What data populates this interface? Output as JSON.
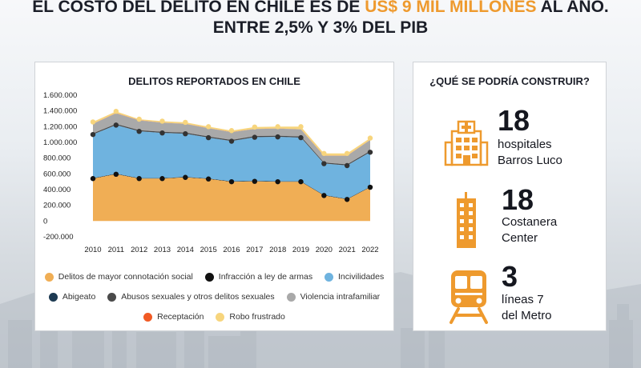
{
  "headline": {
    "line1_pre": "EL COSTO DEL DELITO EN CHILE ES DE ",
    "line1_accent": "US$ 9 MIL MILLONES",
    "line1_post": " AL AÑO.",
    "line2": "ENTRE 2,5% Y 3% DEL PIB"
  },
  "colors": {
    "accent": "#ee9a2e",
    "mayor": "#f0ae55",
    "armas": "#111111",
    "incivilidades": "#6fb3df",
    "abigeato": "#1d3a52",
    "abusos": "#4a4a4a",
    "violencia": "#a9a9a9",
    "receptacion": "#f15a24",
    "frustrado": "#f7d57d"
  },
  "chart_data": {
    "type": "area",
    "title": "DELITOS REPORTADOS EN CHILE",
    "x": [
      "2010",
      "2011",
      "2012",
      "2013",
      "2014",
      "2015",
      "2016",
      "2017",
      "2018",
      "2019",
      "2020",
      "2021",
      "2022"
    ],
    "ylim": [
      -200000,
      1600000
    ],
    "y_ticks": [
      "1.600.000",
      "1.400.000",
      "1.200.000",
      "1.000.000",
      "800.000",
      "600.000",
      "400.000",
      "200.000",
      "0",
      "-200.000"
    ],
    "y_tick_values": [
      1600000,
      1400000,
      1200000,
      1000000,
      800000,
      600000,
      400000,
      200000,
      0,
      -200000
    ],
    "series": [
      {
        "name": "Delitos de mayor connotación social",
        "key": "mayor",
        "cumulative": [
          540000,
          595000,
          540000,
          540000,
          555000,
          535000,
          500000,
          505000,
          500000,
          500000,
          325000,
          275000,
          430000
        ]
      },
      {
        "name": "Infracción a ley de armas",
        "key": "armas",
        "cumulative": [
          545000,
          600000,
          545000,
          545000,
          560000,
          540000,
          505000,
          510000,
          505000,
          505000,
          330000,
          280000,
          435000
        ]
      },
      {
        "name": "Incivilidades",
        "key": "incivilidades",
        "cumulative": [
          1100000,
          1220000,
          1140000,
          1120000,
          1110000,
          1060000,
          1015000,
          1065000,
          1070000,
          1060000,
          730000,
          705000,
          875000
        ]
      },
      {
        "name": "Abigeato",
        "key": "abigeato",
        "cumulative": [
          1102000,
          1222000,
          1142000,
          1122000,
          1112000,
          1062000,
          1017000,
          1067000,
          1072000,
          1062000,
          732000,
          707000,
          877000
        ]
      },
      {
        "name": "Abusos sexuales y otros delitos sexuales",
        "key": "abusos",
        "cumulative": [
          1115000,
          1235000,
          1155000,
          1135000,
          1125000,
          1075000,
          1030000,
          1080000,
          1085000,
          1075000,
          745000,
          720000,
          890000
        ]
      },
      {
        "name": "Violencia intrafamiliar",
        "key": "violencia",
        "cumulative": [
          1235000,
          1370000,
          1280000,
          1250000,
          1235000,
          1180000,
          1130000,
          1170000,
          1175000,
          1165000,
          830000,
          830000,
          1030000
        ]
      },
      {
        "name": "Receptación",
        "key": "receptacion",
        "cumulative": [
          1237000,
          1372000,
          1282000,
          1252000,
          1237000,
          1182000,
          1132000,
          1172000,
          1177000,
          1167000,
          832000,
          832000,
          1032000
        ]
      },
      {
        "name": "Robo frustrado",
        "key": "frustrado",
        "cumulative": [
          1260000,
          1395000,
          1295000,
          1270000,
          1255000,
          1200000,
          1150000,
          1195000,
          1200000,
          1200000,
          860000,
          860000,
          1055000
        ]
      }
    ]
  },
  "legend": {
    "row1": [
      "Delitos de mayor connotación social",
      "Infracción a ley de armas",
      "Incivilidades"
    ],
    "row2": [
      "Abigeato",
      "Abusos sexuales y otros delitos sexuales",
      "Violencia intrafamiliar"
    ],
    "row3": [
      "Receptación",
      "Robo frustrado"
    ]
  },
  "build": {
    "title": "¿QUÉ SE PODRÍA CONSTRUIR?",
    "items": [
      {
        "number": "18",
        "line1": "hospitales",
        "line2": "Barros Luco",
        "icon": "hospital-icon"
      },
      {
        "number": "18",
        "line1": "Costanera",
        "line2": "Center",
        "icon": "skyscraper-icon"
      },
      {
        "number": "3",
        "line1": "líneas 7",
        "line2": "del Metro",
        "icon": "metro-train-icon"
      }
    ]
  }
}
